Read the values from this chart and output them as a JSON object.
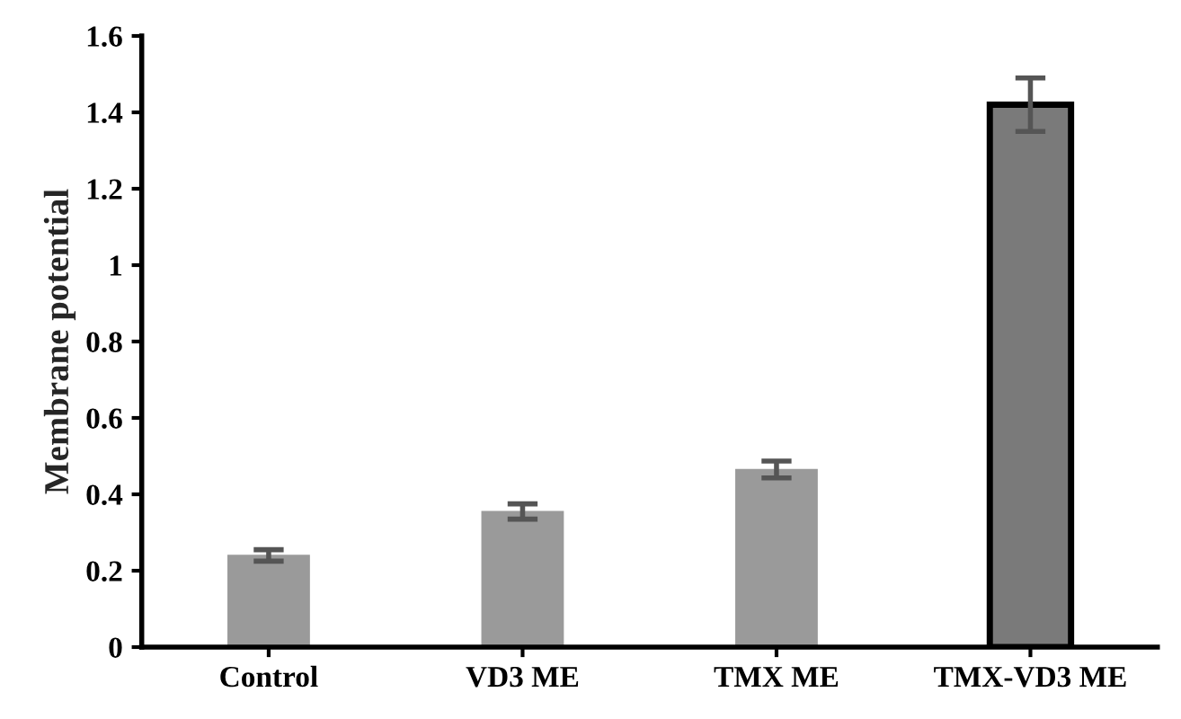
{
  "chart_data": {
    "type": "bar",
    "ylabel": "Membrane potential",
    "categories": [
      "Control",
      "VD3 ME",
      "TMX ME",
      "TMX-VD3 ME"
    ],
    "values": [
      0.24,
      0.355,
      0.465,
      1.42
    ],
    "errors": [
      0.015,
      0.02,
      0.022,
      0.07
    ],
    "colors": [
      "#9a9a9a",
      "#9a9a9a",
      "#9a9a9a",
      "#7a7a7a"
    ],
    "ylim": [
      0,
      1.6
    ],
    "yticks": [
      0,
      0.2,
      0.4,
      0.6,
      0.8,
      1,
      1.2,
      1.4,
      1.6
    ],
    "grid": false,
    "legend": false
  }
}
